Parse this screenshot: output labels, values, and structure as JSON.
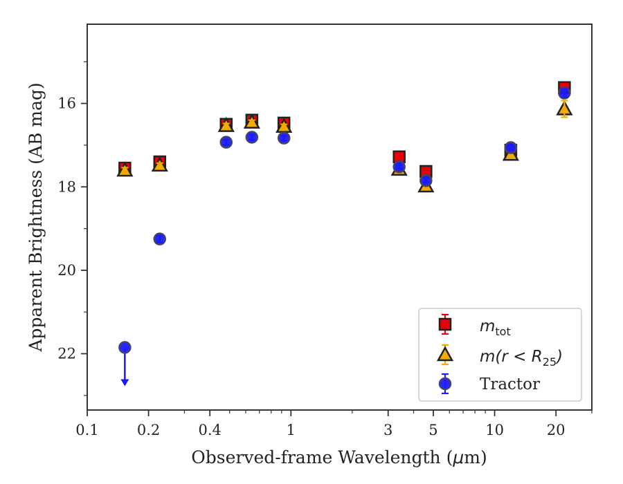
{
  "chart_data": {
    "type": "scatter",
    "xlabel_prefix": "Observed-frame Wavelength (",
    "xlabel_unit": "μ",
    "xlabel_suffix": "m)",
    "ylabel": "Apparent Brightness (AB mag)",
    "x_scale": "log",
    "y_inverted": true,
    "xlim": [
      0.1,
      30
    ],
    "ylim": [
      23.35,
      14.1
    ],
    "x_ticks": [
      0.1,
      0.2,
      0.4,
      1,
      3,
      5,
      10,
      20
    ],
    "x_tick_labels": [
      "0.1",
      "0.2",
      "0.4",
      "1",
      "3",
      "5",
      "10",
      "20"
    ],
    "y_ticks": [
      16,
      18,
      20,
      22
    ],
    "y_tick_labels": [
      "16",
      "18",
      "20",
      "22"
    ],
    "legend_position": "lower right",
    "legend": [
      {
        "label_math": "m",
        "label_sub": "tot",
        "label_text": ""
      },
      {
        "label_math": "m",
        "label_mid": "(r < R",
        "label_sub": "25",
        "label_end": ")",
        "label_text": ""
      },
      {
        "label_math": "",
        "label_text": "Tractor"
      }
    ],
    "series": [
      {
        "name": "m_tot",
        "marker": "square",
        "face_color": "#e8000b",
        "edge_color": "#222222",
        "err_color": "#e8000b",
        "points": [
          {
            "x": 0.153,
            "y": 17.55,
            "err": 0.1
          },
          {
            "x": 0.227,
            "y": 17.4,
            "err": 0.06
          },
          {
            "x": 0.481,
            "y": 16.5,
            "err": 0.05
          },
          {
            "x": 0.643,
            "y": 16.4,
            "err": 0.05
          },
          {
            "x": 0.924,
            "y": 16.47,
            "err": 0.05
          },
          {
            "x": 3.4,
            "y": 17.28,
            "err": 0.05
          },
          {
            "x": 4.6,
            "y": 17.63,
            "err": 0.05
          },
          {
            "x": 12.0,
            "y": 17.12,
            "err": 0.05
          },
          {
            "x": 22.0,
            "y": 15.62,
            "err": 0.05
          }
        ]
      },
      {
        "name": "m(r<R25)",
        "marker": "triangle",
        "face_color": "#f5a800",
        "edge_color": "#222222",
        "err_color": "#f5a800",
        "points": [
          {
            "x": 0.153,
            "y": 17.6,
            "err": 0.06
          },
          {
            "x": 0.227,
            "y": 17.48,
            "err": 0.05
          },
          {
            "x": 0.481,
            "y": 16.53,
            "err": 0.05
          },
          {
            "x": 0.643,
            "y": 16.45,
            "err": 0.05
          },
          {
            "x": 0.924,
            "y": 16.55,
            "err": 0.05
          },
          {
            "x": 3.4,
            "y": 17.58,
            "err": 0.05
          },
          {
            "x": 4.6,
            "y": 17.98,
            "err": 0.06
          },
          {
            "x": 12.0,
            "y": 17.22,
            "err": 0.05
          },
          {
            "x": 22.0,
            "y": 16.13,
            "err": 0.2
          }
        ]
      },
      {
        "name": "Tractor",
        "marker": "circle",
        "face_color": "#1a1aff",
        "edge_color": "#444466",
        "err_color": "#1a1aff",
        "points": [
          {
            "x": 0.153,
            "y": 21.85,
            "err": 0.0,
            "upper_limit": true
          },
          {
            "x": 0.227,
            "y": 19.25,
            "err": 0.08
          },
          {
            "x": 0.481,
            "y": 16.93,
            "err": 0.06
          },
          {
            "x": 0.643,
            "y": 16.81,
            "err": 0.06
          },
          {
            "x": 0.924,
            "y": 16.83,
            "err": 0.06
          },
          {
            "x": 3.4,
            "y": 17.52,
            "err": 0.05
          },
          {
            "x": 4.6,
            "y": 17.85,
            "err": 0.05
          },
          {
            "x": 12.0,
            "y": 17.06,
            "err": 0.05
          },
          {
            "x": 22.0,
            "y": 15.75,
            "err": 0.1
          }
        ]
      }
    ]
  }
}
